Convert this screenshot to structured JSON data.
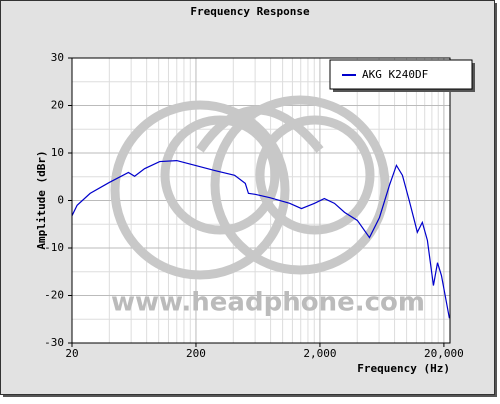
{
  "chart_data": {
    "type": "line",
    "title": "Frequency Response",
    "x_label": "Frequency (Hz)",
    "y_label": "Amplitude (dBr)",
    "watermark": "www.headphone.com",
    "x": [
      20,
      22,
      28,
      40,
      57,
      64,
      77,
      102,
      140,
      196,
      284,
      410,
      500,
      530,
      600,
      790,
      1140,
      1420,
      1810,
      2170,
      2620,
      3160,
      4010,
      5020,
      6040,
      7270,
      8280,
      9260,
      10500,
      11550,
      12210,
      13400,
      14720,
      16470,
      17760,
      19110,
      22150
    ],
    "series": [
      {
        "name": "AKG K240DF",
        "color": "#0000cc",
        "values": [
          -3.2,
          -1,
          1.5,
          3.8,
          5.9,
          5.1,
          6.7,
          8.2,
          8.4,
          7.4,
          6.3,
          5.3,
          3.6,
          1.5,
          1.3,
          0.6,
          -0.6,
          -1.7,
          -0.6,
          0.4,
          -0.6,
          -2.5,
          -4.2,
          -7.8,
          -3.6,
          3.2,
          7.4,
          5.3,
          0,
          -4.2,
          -6.7,
          -4.6,
          -8.4,
          -17.9,
          -13.1,
          -15.8,
          -24.8
        ]
      }
    ],
    "xlog": true,
    "xlim": [
      20,
      22400
    ],
    "xticks": [
      20,
      200,
      {
        "value": 2000,
        "label": "2,000"
      },
      {
        "value": 20000,
        "label": "20,000"
      }
    ],
    "xminorticks": [
      40,
      60,
      80,
      100,
      120,
      140,
      160,
      180,
      400,
      600,
      800,
      1000,
      1200,
      1400,
      1600,
      1800,
      4000,
      6000,
      8000,
      10000,
      12000,
      14000,
      16000,
      18000
    ],
    "ylim": [
      -30,
      30
    ],
    "yticks": [
      -30,
      -20,
      -10,
      0,
      10,
      20,
      30
    ],
    "yminorticks": [
      -25,
      -15,
      -5,
      5,
      15,
      25
    ],
    "grid": true,
    "legend": "top-right"
  }
}
